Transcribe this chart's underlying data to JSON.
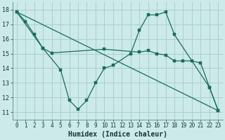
{
  "title": "",
  "xlabel": "Humidex (Indice chaleur)",
  "ylabel": "",
  "bg_color": "#cceaea",
  "grid_color": "#aacece",
  "line_color": "#1a6b5a",
  "xlim": [
    -0.5,
    23.5
  ],
  "ylim": [
    10.5,
    18.5
  ],
  "xticks": [
    0,
    1,
    2,
    3,
    4,
    5,
    6,
    7,
    8,
    9,
    10,
    11,
    12,
    13,
    14,
    15,
    16,
    17,
    18,
    19,
    20,
    21,
    22,
    23
  ],
  "yticks": [
    11,
    12,
    13,
    14,
    15,
    16,
    17,
    18
  ],
  "line1_x": [
    0,
    1,
    2,
    3,
    4,
    10,
    14,
    15,
    16,
    17,
    18,
    19,
    20,
    21,
    22,
    23
  ],
  "line1_y": [
    17.85,
    17.2,
    16.3,
    15.35,
    15.05,
    15.3,
    15.1,
    15.2,
    15.0,
    14.9,
    14.5,
    14.5,
    14.5,
    14.35,
    12.7,
    11.1
  ],
  "line2_x": [
    0,
    3,
    5,
    6,
    7,
    8,
    9,
    10,
    11,
    13,
    14,
    15,
    16,
    17,
    18,
    22,
    23
  ],
  "line2_y": [
    17.85,
    15.35,
    13.9,
    11.8,
    11.2,
    11.8,
    13.0,
    14.0,
    14.2,
    15.0,
    16.6,
    17.65,
    17.65,
    17.85,
    16.3,
    12.7,
    11.1
  ],
  "line3_x": [
    0,
    23
  ],
  "line3_y": [
    17.85,
    11.1
  ],
  "tick_fontsize": 5.5,
  "xlabel_fontsize": 7.0,
  "lw": 0.9,
  "ms": 2.5
}
